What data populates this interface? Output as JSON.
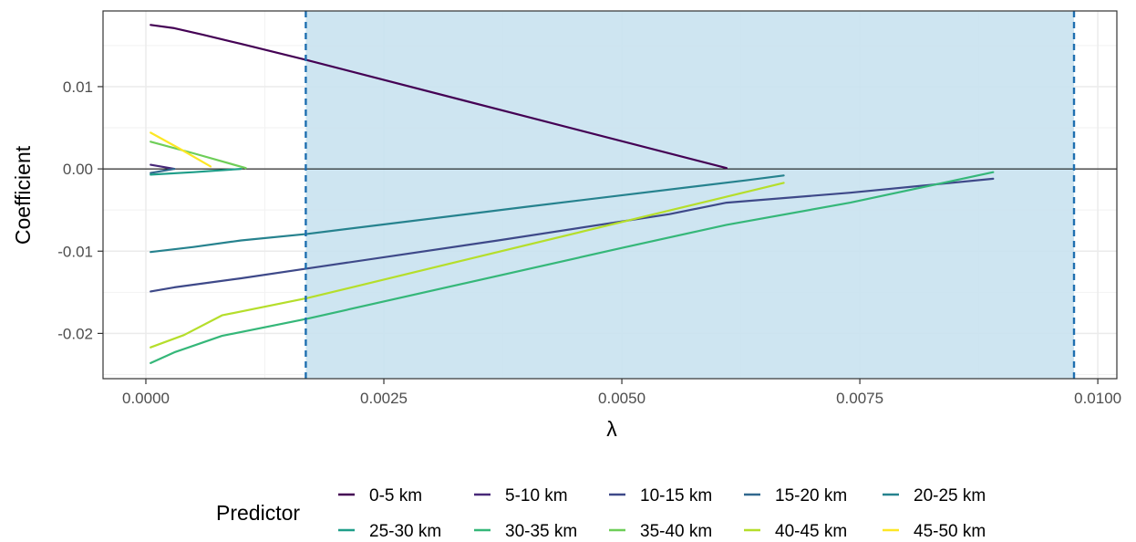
{
  "chart_data": {
    "type": "line",
    "title": "",
    "xlabel": "λ",
    "ylabel": "Coefficient",
    "xlim": [
      -0.00045,
      0.0102
    ],
    "ylim": [
      -0.0255,
      0.0192
    ],
    "x_ticks": [
      0.0,
      0.0025,
      0.005,
      0.0075,
      0.01
    ],
    "x_tick_labels": [
      "0.0000",
      "0.0025",
      "0.0050",
      "0.0075",
      "0.0100"
    ],
    "y_ticks": [
      -0.02,
      -0.01,
      0.0,
      0.01
    ],
    "y_tick_labels": [
      "-0.02",
      "-0.01",
      "0.00",
      "0.01"
    ],
    "grid": true,
    "hline": 0,
    "shaded_region": {
      "x": [
        0.00168,
        0.00975
      ],
      "color": "#c9e2f0"
    },
    "vlines": [
      {
        "x": 0.00168,
        "color": "#1f6fb0",
        "style": "dashed"
      },
      {
        "x": 0.00975,
        "color": "#1f6fb0",
        "style": "dashed"
      }
    ],
    "legend": {
      "title": "Predictor",
      "position": "bottom"
    },
    "series": [
      {
        "name": "0-5 km",
        "color": "#440154",
        "x": [
          5e-05,
          0.0003,
          0.0006,
          0.001,
          0.0017,
          0.0061
        ],
        "y": [
          0.0175,
          0.0171,
          0.0163,
          0.0152,
          0.0132,
          0.0001
        ]
      },
      {
        "name": "5-10 km",
        "color": "#482878",
        "x": [
          5e-05,
          0.0003
        ],
        "y": [
          0.0005,
          0.0
        ]
      },
      {
        "name": "10-15 km",
        "color": "#3e4989",
        "x": [
          5e-05,
          0.0003,
          0.001,
          0.0017,
          0.0037,
          0.0055,
          0.0061,
          0.0074,
          0.0089
        ],
        "y": [
          -0.0149,
          -0.0144,
          -0.0133,
          -0.0121,
          -0.0087,
          -0.0055,
          -0.0041,
          -0.0029,
          -0.0012
        ]
      },
      {
        "name": "15-20 km",
        "color": "#31688e",
        "x": [
          5e-05,
          0.0003
        ],
        "y": [
          -0.0005,
          0.0
        ]
      },
      {
        "name": "20-25 km",
        "color": "#26828e",
        "x": [
          5e-05,
          0.0005,
          0.001,
          0.0017,
          0.004,
          0.0063,
          0.0067
        ],
        "y": [
          -0.0101,
          -0.0095,
          -0.0087,
          -0.0079,
          -0.0046,
          -0.0014,
          -0.0008
        ]
      },
      {
        "name": "25-30 km",
        "color": "#1f9e89",
        "x": [
          5e-05,
          0.0005,
          0.001
        ],
        "y": [
          -0.0007,
          -0.0004,
          0.0
        ]
      },
      {
        "name": "30-35 km",
        "color": "#35b779",
        "x": [
          5e-05,
          0.0003,
          0.0008,
          0.0017,
          0.005,
          0.0061,
          0.0074,
          0.0089
        ],
        "y": [
          -0.0236,
          -0.0223,
          -0.0203,
          -0.0182,
          -0.0096,
          -0.0068,
          -0.0041,
          -0.0004
        ]
      },
      {
        "name": "35-40 km",
        "color": "#6ece58",
        "x": [
          5e-05,
          0.0005,
          0.00105
        ],
        "y": [
          0.0033,
          0.0019,
          0.0001
        ]
      },
      {
        "name": "40-45 km",
        "color": "#b5de2b",
        "x": [
          5e-05,
          0.0004,
          0.0008,
          0.0017,
          0.0067
        ],
        "y": [
          -0.0217,
          -0.0202,
          -0.0178,
          -0.0157,
          -0.0017
        ]
      },
      {
        "name": "45-50 km",
        "color": "#fde725",
        "x": [
          5e-05,
          0.00035,
          0.00068
        ],
        "y": [
          0.0044,
          0.0025,
          0.0003
        ]
      }
    ]
  }
}
